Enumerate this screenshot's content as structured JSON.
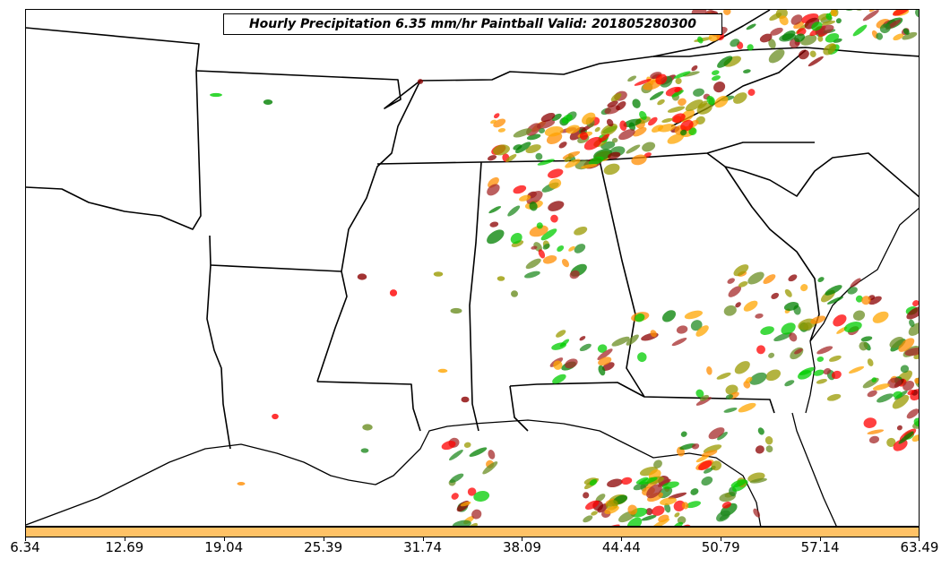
{
  "title": "Hourly Precipitation 6.35 mm/hr Paintball Valid: 201805280300",
  "colorbar": {
    "color": "#ffc266",
    "ticks": [
      "6.34",
      "12.69",
      "19.04",
      "25.39",
      "31.74",
      "38.09",
      "44.44",
      "50.79",
      "57.14",
      "63.49"
    ]
  },
  "palette": [
    "#ff0000",
    "#ff8c00",
    "#ffa500",
    "#00cc00",
    "#008000",
    "#8b0000",
    "#9a9a00",
    "#6b8e23",
    "#a52a2a",
    "#228b22"
  ]
}
